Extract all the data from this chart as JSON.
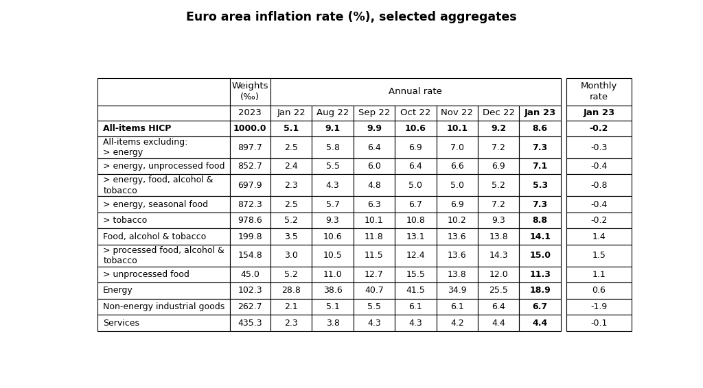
{
  "title": "Euro area inflation rate (%), selected aggregates",
  "col_labels_row2": [
    "",
    "2023",
    "Jan 22",
    "Aug 22",
    "Sep 22",
    "Oct 22",
    "Nov 22",
    "Dec 22",
    "Jan 23",
    "Jan 23"
  ],
  "rows": [
    {
      "label": "All-items HICP",
      "label_bold": true,
      "values": [
        "1000.0",
        "5.1",
        "9.1",
        "9.9",
        "10.6",
        "10.1",
        "9.2",
        "8.6",
        "-0.2"
      ],
      "bold_annual_last": true,
      "bold_monthly": true,
      "bold_weight": true
    },
    {
      "label": "All-items excluding:\n> energy",
      "label_bold": false,
      "values": [
        "897.7",
        "2.5",
        "5.8",
        "6.4",
        "6.9",
        "7.0",
        "7.2",
        "7.3",
        "-0.3"
      ],
      "bold_annual_last": true,
      "bold_monthly": false,
      "bold_weight": false
    },
    {
      "label": "> energy, unprocessed food",
      "label_bold": false,
      "values": [
        "852.7",
        "2.4",
        "5.5",
        "6.0",
        "6.4",
        "6.6",
        "6.9",
        "7.1",
        "-0.4"
      ],
      "bold_annual_last": true,
      "bold_monthly": false,
      "bold_weight": false
    },
    {
      "label": "> energy, food, alcohol &\ntobacco",
      "label_bold": false,
      "values": [
        "697.9",
        "2.3",
        "4.3",
        "4.8",
        "5.0",
        "5.0",
        "5.2",
        "5.3",
        "-0.8"
      ],
      "bold_annual_last": true,
      "bold_monthly": false,
      "bold_weight": false
    },
    {
      "label": "> energy, seasonal food",
      "label_bold": false,
      "values": [
        "872.3",
        "2.5",
        "5.7",
        "6.3",
        "6.7",
        "6.9",
        "7.2",
        "7.3",
        "-0.4"
      ],
      "bold_annual_last": true,
      "bold_monthly": false,
      "bold_weight": false
    },
    {
      "label": "> tobacco",
      "label_bold": false,
      "values": [
        "978.6",
        "5.2",
        "9.3",
        "10.1",
        "10.8",
        "10.2",
        "9.3",
        "8.8",
        "-0.2"
      ],
      "bold_annual_last": true,
      "bold_monthly": false,
      "bold_weight": false
    },
    {
      "label": "Food, alcohol & tobacco",
      "label_bold": false,
      "values": [
        "199.8",
        "3.5",
        "10.6",
        "11.8",
        "13.1",
        "13.6",
        "13.8",
        "14.1",
        "1.4"
      ],
      "bold_annual_last": true,
      "bold_monthly": false,
      "bold_weight": false
    },
    {
      "label": "> processed food, alcohol &\ntobacco",
      "label_bold": false,
      "values": [
        "154.8",
        "3.0",
        "10.5",
        "11.5",
        "12.4",
        "13.6",
        "14.3",
        "15.0",
        "1.5"
      ],
      "bold_annual_last": true,
      "bold_monthly": false,
      "bold_weight": false
    },
    {
      "label": "> unprocessed food",
      "label_bold": false,
      "values": [
        "45.0",
        "5.2",
        "11.0",
        "12.7",
        "15.5",
        "13.8",
        "12.0",
        "11.3",
        "1.1"
      ],
      "bold_annual_last": true,
      "bold_monthly": false,
      "bold_weight": false
    },
    {
      "label": "Energy",
      "label_bold": false,
      "values": [
        "102.3",
        "28.8",
        "38.6",
        "40.7",
        "41.5",
        "34.9",
        "25.5",
        "18.9",
        "0.6"
      ],
      "bold_annual_last": true,
      "bold_monthly": false,
      "bold_weight": false
    },
    {
      "label": "Non-energy industrial goods",
      "label_bold": false,
      "values": [
        "262.7",
        "2.1",
        "5.1",
        "5.5",
        "6.1",
        "6.1",
        "6.4",
        "6.7",
        "-1.9"
      ],
      "bold_annual_last": true,
      "bold_monthly": false,
      "bold_weight": false
    },
    {
      "label": "Services",
      "label_bold": false,
      "values": [
        "435.3",
        "2.3",
        "3.8",
        "4.3",
        "4.3",
        "4.2",
        "4.4",
        "4.4",
        "-0.1"
      ],
      "bold_annual_last": true,
      "bold_monthly": false,
      "bold_weight": false
    }
  ],
  "background_color": "#ffffff",
  "title_fontsize": 12.5,
  "header_fontsize": 9.5,
  "cell_fontsize": 9.0
}
